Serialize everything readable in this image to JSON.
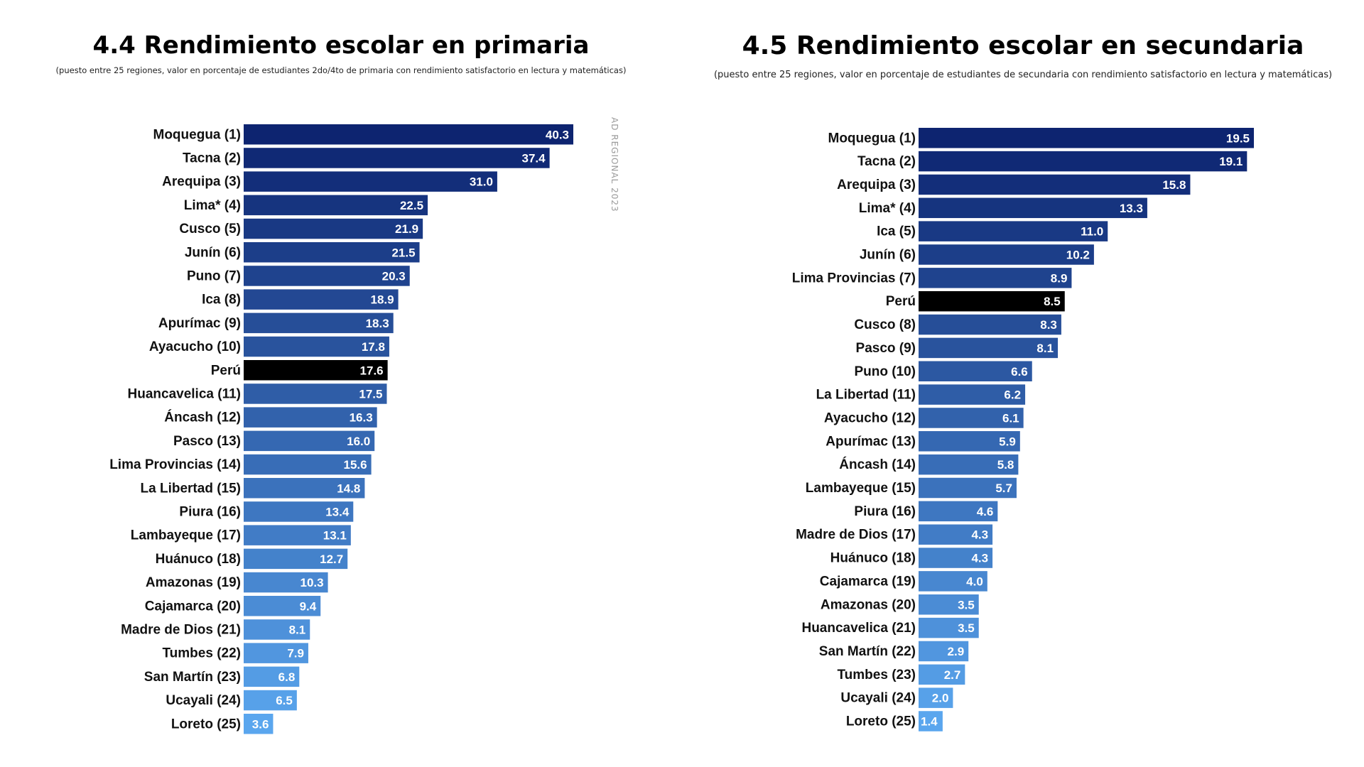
{
  "side_note": "AD REGIONAL 2023",
  "chart_data": [
    {
      "type": "bar",
      "orientation": "horizontal",
      "title": "4.4 Rendimiento escolar en primaria",
      "subtitle": "(puesto entre 25 regiones, valor en porcentaje de estudiantes 2do/4to de primaria con rendimiento satisfactorio en lectura y matemáticas)",
      "highlight_category": "Perú",
      "highlight_color": "#000000",
      "color_dark": "#0d2470",
      "color_light": "#5aa6ee",
      "xlim": [
        0,
        40.3
      ],
      "categories": [
        "Moquegua (1)",
        "Tacna (2)",
        "Arequipa (3)",
        "Lima* (4)",
        "Cusco (5)",
        "Junín (6)",
        "Puno (7)",
        "Ica (8)",
        "Apurímac (9)",
        "Ayacucho (10)",
        "Perú",
        "Huancavelica (11)",
        "Áncash (12)",
        "Pasco (13)",
        "Lima Provincias (14)",
        "La Libertad (15)",
        "Piura (16)",
        "Lambayeque (17)",
        "Huánuco (18)",
        "Amazonas (19)",
        "Cajamarca (20)",
        "Madre de Dios (21)",
        "Tumbes (22)",
        "San Martín (23)",
        "Ucayali (24)",
        "Loreto (25)"
      ],
      "values": [
        40.3,
        37.4,
        31.0,
        22.5,
        21.9,
        21.5,
        20.3,
        18.9,
        18.3,
        17.8,
        17.6,
        17.5,
        16.3,
        16.0,
        15.6,
        14.8,
        13.4,
        13.1,
        12.7,
        10.3,
        9.4,
        8.1,
        7.9,
        6.8,
        6.5,
        3.6
      ],
      "value_labels": [
        "40.3",
        "37.4",
        "31.0",
        "22.5",
        "21.9",
        "21.5",
        "20.3",
        "18.9",
        "18.3",
        "17.8",
        "17.6",
        "17.5",
        "16.3",
        "16.0",
        "15.6",
        "14.8",
        "13.4",
        "13.1",
        "12.7",
        "10.3",
        "9.4",
        "8.1",
        "7.9",
        "6.8",
        "6.5",
        "3.6"
      ]
    },
    {
      "type": "bar",
      "orientation": "horizontal",
      "title": "4.5 Rendimiento escolar en secundaria",
      "subtitle": "(puesto entre 25 regiones, valor en porcentaje de estudiantes de secundaria con rendimiento satisfactorio en lectura y matemáticas)",
      "highlight_category": "Perú",
      "highlight_color": "#000000",
      "color_dark": "#0d2470",
      "color_light": "#5aa6ee",
      "xlim": [
        0,
        19.5
      ],
      "categories": [
        "Moquegua (1)",
        "Tacna (2)",
        "Arequipa (3)",
        "Lima* (4)",
        "Ica (5)",
        "Junín (6)",
        "Lima Provincias (7)",
        "Perú",
        "Cusco (8)",
        "Pasco (9)",
        "Puno (10)",
        "La Libertad (11)",
        "Ayacucho (12)",
        "Apurímac (13)",
        "Áncash (14)",
        "Lambayeque (15)",
        "Piura (16)",
        "Madre de Dios (17)",
        "Huánuco (18)",
        "Cajamarca (19)",
        "Amazonas (20)",
        "Huancavelica (21)",
        "San Martín (22)",
        "Tumbes (23)",
        "Ucayali (24)",
        "Loreto (25)"
      ],
      "values": [
        19.5,
        19.1,
        15.8,
        13.3,
        11.0,
        10.2,
        8.9,
        8.5,
        8.3,
        8.1,
        6.6,
        6.2,
        6.1,
        5.9,
        5.8,
        5.7,
        4.6,
        4.3,
        4.3,
        4.0,
        3.5,
        3.5,
        2.9,
        2.7,
        2.0,
        1.4
      ],
      "value_labels": [
        "19.5",
        "19.1",
        "15.8",
        "13.3",
        "11.0",
        "10.2",
        "8.9",
        "8.5",
        "8.3",
        "8.1",
        "6.6",
        "6.2",
        "6.1",
        "5.9",
        "5.8",
        "5.7",
        "4.6",
        "4.3",
        "4.3",
        "4.0",
        "3.5",
        "3.5",
        "2.9",
        "2.7",
        "2.0",
        "1.4"
      ]
    }
  ]
}
